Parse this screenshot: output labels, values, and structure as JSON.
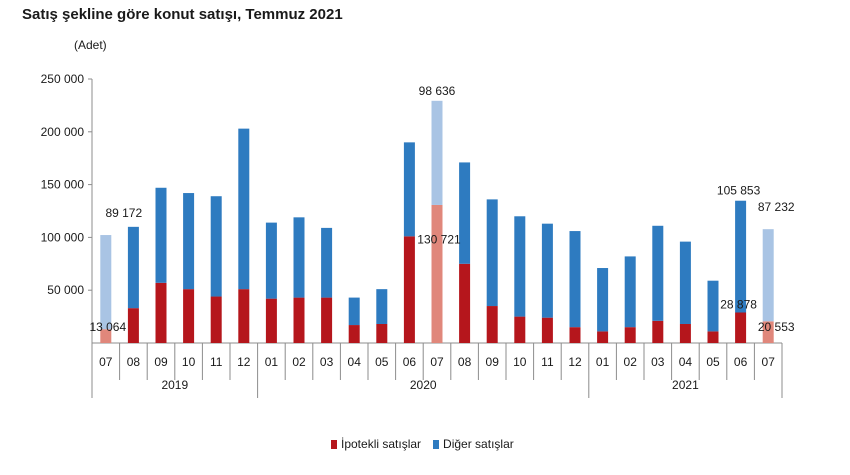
{
  "title": "Satış şekline göre konut satışı, Temmuz 2021",
  "unit": "(Adet)",
  "colors": {
    "mortgage": "#b5161c",
    "mortgage_highlight": "#e0877b",
    "other": "#2e7bc0",
    "other_highlight": "#a9c4e4"
  },
  "legend": [
    {
      "label": "İpotekli satışlar",
      "color": "#b5161c"
    },
    {
      "label": "Diğer satışlar",
      "color": "#2e7bc0"
    }
  ],
  "chart_data": {
    "type": "bar",
    "stacked": true,
    "ylim": [
      0,
      250000
    ],
    "yticks": [
      50000,
      100000,
      150000,
      200000,
      250000
    ],
    "ytick_labels": [
      "50 000",
      "100 000",
      "150 000",
      "200 000",
      "250 000"
    ],
    "categories": [
      "07",
      "08",
      "09",
      "10",
      "11",
      "12",
      "01",
      "02",
      "03",
      "04",
      "05",
      "06",
      "07",
      "08",
      "09",
      "10",
      "11",
      "12",
      "01",
      "02",
      "03",
      "04",
      "05",
      "06",
      "07"
    ],
    "year_groups": [
      {
        "label": "2019",
        "count": 6
      },
      {
        "label": "2020",
        "count": 12
      },
      {
        "label": "2021",
        "count": 7
      }
    ],
    "series": [
      {
        "name": "İpotekli satışlar",
        "values": [
          13064,
          33000,
          57000,
          51000,
          44000,
          51000,
          42000,
          43000,
          43000,
          17000,
          18000,
          101000,
          130721,
          75000,
          35000,
          25000,
          24000,
          15000,
          11000,
          15000,
          21000,
          18000,
          11000,
          28878,
          20553
        ]
      },
      {
        "name": "Diğer satışlar",
        "values": [
          89172,
          77000,
          90000,
          91000,
          95000,
          152000,
          72000,
          76000,
          66000,
          26000,
          33000,
          89000,
          98636,
          96000,
          101000,
          95000,
          89000,
          91000,
          60000,
          67000,
          90000,
          78000,
          48000,
          105853,
          87232
        ]
      }
    ],
    "highlight_indices": [
      0,
      12,
      24
    ],
    "annotations": [
      {
        "index": 0,
        "series": "other",
        "text": "89 172"
      },
      {
        "index": 0,
        "series": "mortgage",
        "text": "13 064"
      },
      {
        "index": 12,
        "series": "other",
        "text": "98 636"
      },
      {
        "index": 12,
        "series": "mortgage",
        "text": "130 721"
      },
      {
        "index": 23,
        "series": "other",
        "text": "105 853"
      },
      {
        "index": 23,
        "series": "mortgage",
        "text": "28 878"
      },
      {
        "index": 24,
        "series": "other",
        "text": "87 232"
      },
      {
        "index": 24,
        "series": "mortgage",
        "text": "20 553"
      }
    ]
  }
}
